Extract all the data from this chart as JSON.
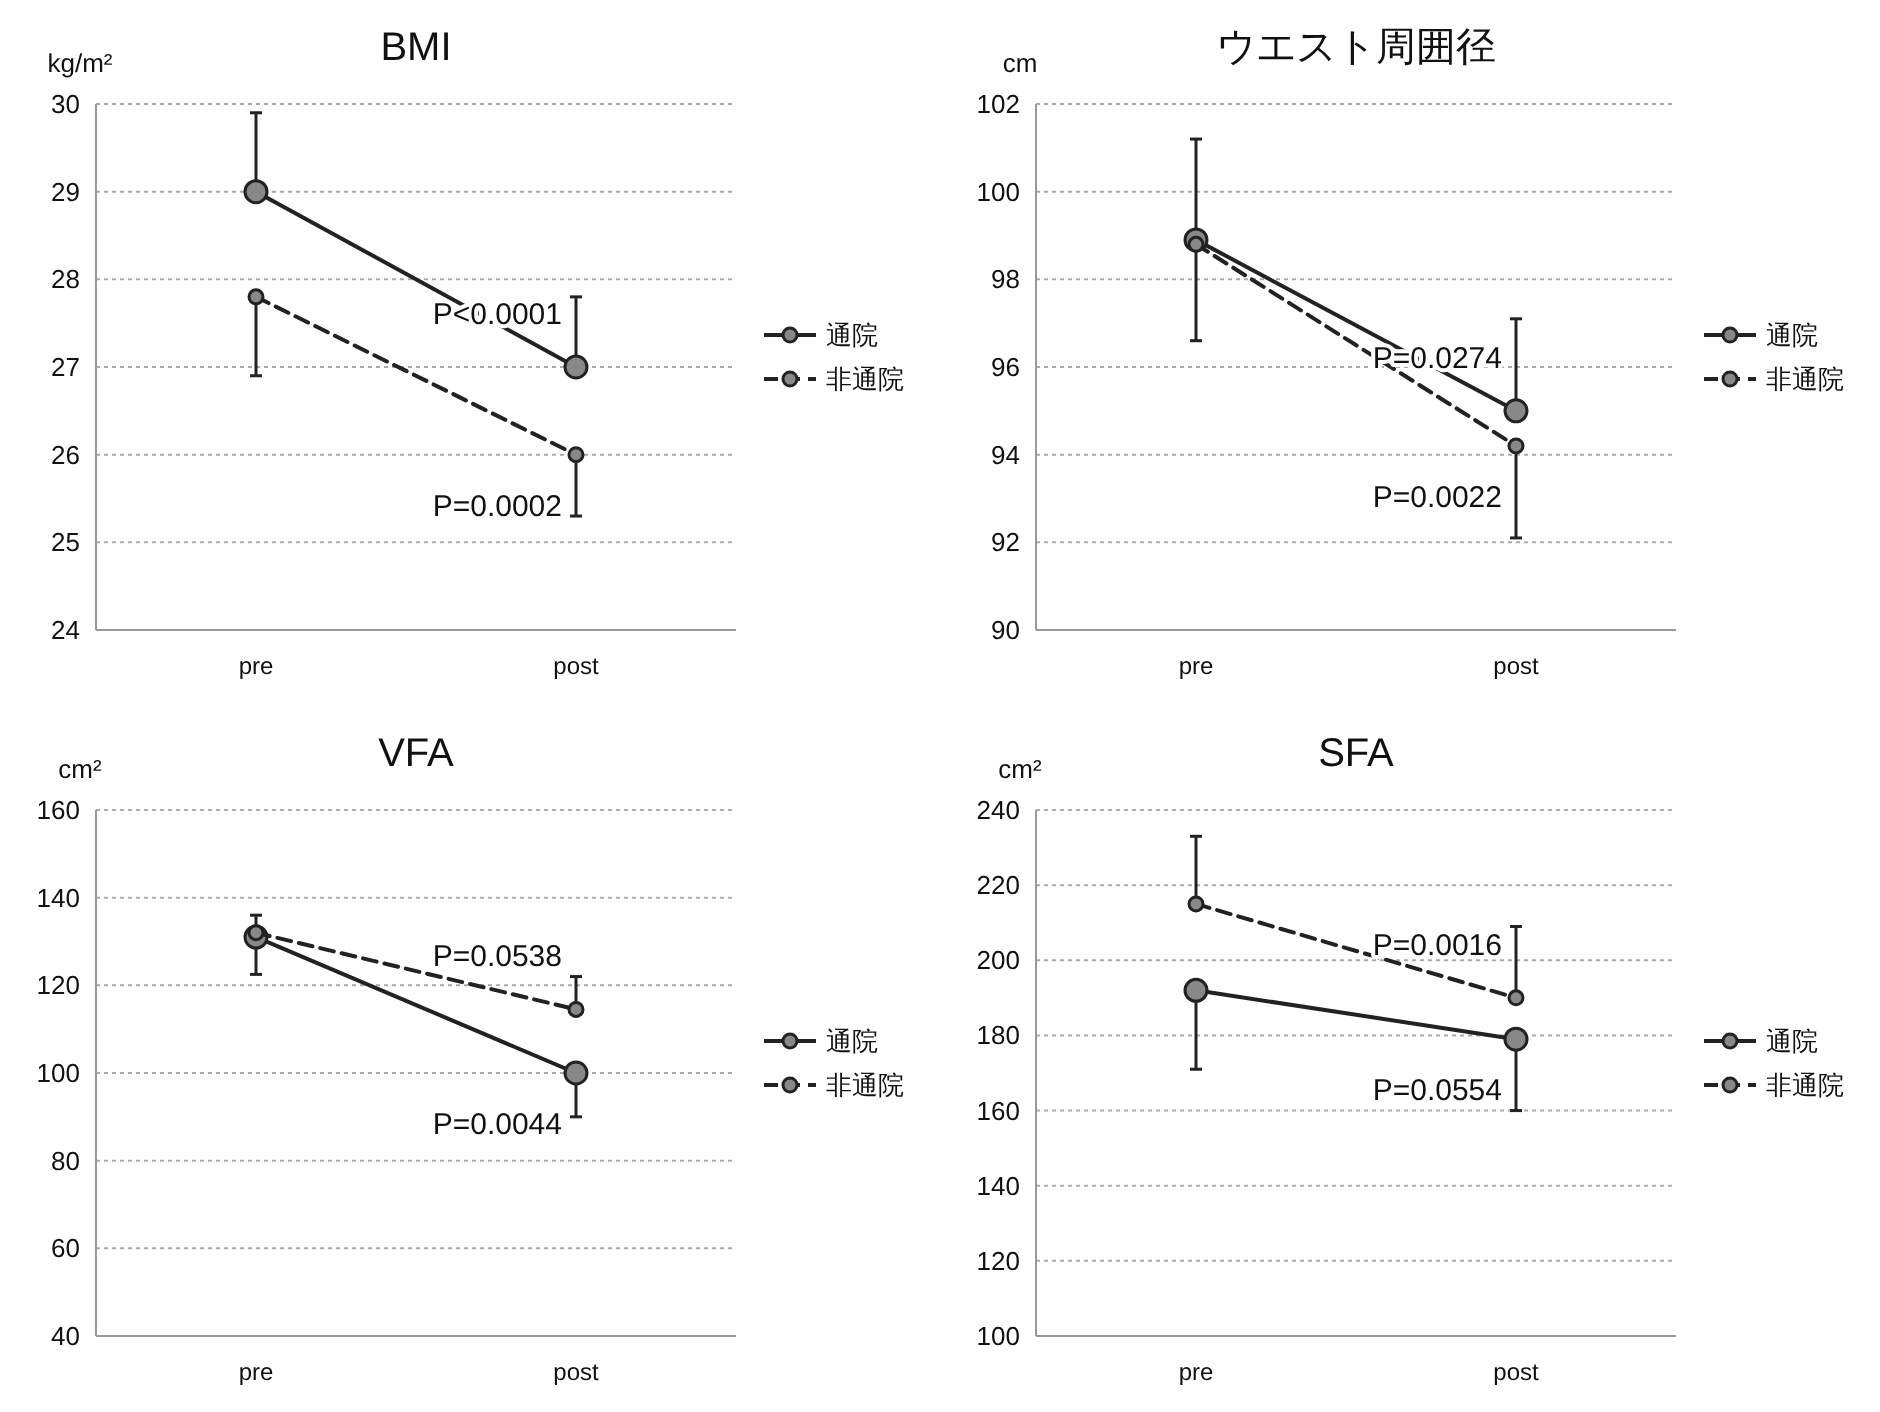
{
  "chart_data": [
    {
      "type": "line",
      "title": "BMI",
      "ylabel": "kg/m²",
      "categories": [
        "pre",
        "post"
      ],
      "ylim": [
        24,
        30
      ],
      "yticks": [
        24,
        25,
        26,
        27,
        28,
        29,
        30
      ],
      "grid": "y",
      "legend": "right",
      "marker": "circle",
      "series": [
        {
          "name": "通院",
          "color": "#222222",
          "line_style": "solid",
          "values": [
            29,
            27
          ],
          "errors": [
            [
              29,
              29.9
            ],
            [
              27,
              27.8
            ]
          ]
        },
        {
          "name": "非通院",
          "color": "#222222",
          "line_style": "dashed",
          "values": [
            27.8,
            26
          ],
          "errors": [
            [
              26.9,
              27.8
            ],
            [
              25.3,
              26
            ]
          ]
        }
      ],
      "annotations": [
        {
          "text": "P<0.0001",
          "x": "post",
          "y": 27
        },
        {
          "text": "P=0.0002",
          "x": "post",
          "y": 26
        }
      ]
    },
    {
      "type": "line",
      "title": "ウエスト周囲径",
      "ylabel": "cm",
      "categories": [
        "pre",
        "post"
      ],
      "ylim": [
        90,
        102
      ],
      "yticks": [
        90,
        92,
        94,
        96,
        98,
        100,
        102
      ],
      "grid": "y",
      "legend": "right",
      "marker": "circle",
      "series": [
        {
          "name": "通院",
          "color": "#222222",
          "line_style": "solid",
          "values": [
            98.9,
            95
          ],
          "errors": [
            [
              98.9,
              101.2
            ],
            [
              95,
              97.1
            ]
          ]
        },
        {
          "name": "非通院",
          "color": "#222222",
          "line_style": "dashed",
          "values": [
            98.8,
            94.2
          ],
          "errors": [
            [
              96.6,
              98.8
            ],
            [
              92.1,
              94.2
            ]
          ]
        }
      ],
      "annotations": [
        {
          "text": "P=0.0274",
          "x": "post",
          "y": 95
        },
        {
          "text": "P=0.0022",
          "x": "post",
          "y": 94.2
        }
      ]
    },
    {
      "type": "line",
      "title": "VFA",
      "ylabel": "cm²",
      "categories": [
        "pre",
        "post"
      ],
      "ylim": [
        40,
        160
      ],
      "yticks": [
        40,
        60,
        80,
        100,
        120,
        140,
        160
      ],
      "grid": "y",
      "legend": "right",
      "marker": "circle",
      "series": [
        {
          "name": "通院",
          "color": "#222222",
          "line_style": "solid",
          "values": [
            131,
            100
          ],
          "errors": [
            [
              122.5,
              131
            ],
            [
              90,
              100
            ]
          ]
        },
        {
          "name": "非通院",
          "color": "#222222",
          "line_style": "dashed",
          "values": [
            132,
            114.5
          ],
          "errors": [
            [
              132,
              136
            ],
            [
              114.5,
              122
            ]
          ]
        }
      ],
      "annotations": [
        {
          "text": "P=0.0538",
          "x": "post",
          "y": 114.5
        },
        {
          "text": "P=0.0044",
          "x": "post",
          "y": 100
        }
      ]
    },
    {
      "type": "line",
      "title": "SFA",
      "ylabel": "cm²",
      "categories": [
        "pre",
        "post"
      ],
      "ylim": [
        100,
        240
      ],
      "yticks": [
        100,
        120,
        140,
        160,
        180,
        200,
        220,
        240
      ],
      "grid": "y",
      "legend": "right",
      "marker": "circle",
      "series": [
        {
          "name": "通院",
          "color": "#222222",
          "line_style": "solid",
          "values": [
            192,
            179
          ],
          "errors": [
            [
              171,
              192
            ],
            [
              160,
              179
            ]
          ]
        },
        {
          "name": "非通院",
          "color": "#222222",
          "line_style": "dashed",
          "values": [
            215,
            190
          ],
          "errors": [
            [
              215,
              233
            ],
            [
              190,
              209
            ]
          ]
        }
      ],
      "annotations": [
        {
          "text": "P=0.0016",
          "x": "post",
          "y": 190
        },
        {
          "text": "P=0.0554",
          "x": "post",
          "y": 179
        }
      ]
    }
  ]
}
